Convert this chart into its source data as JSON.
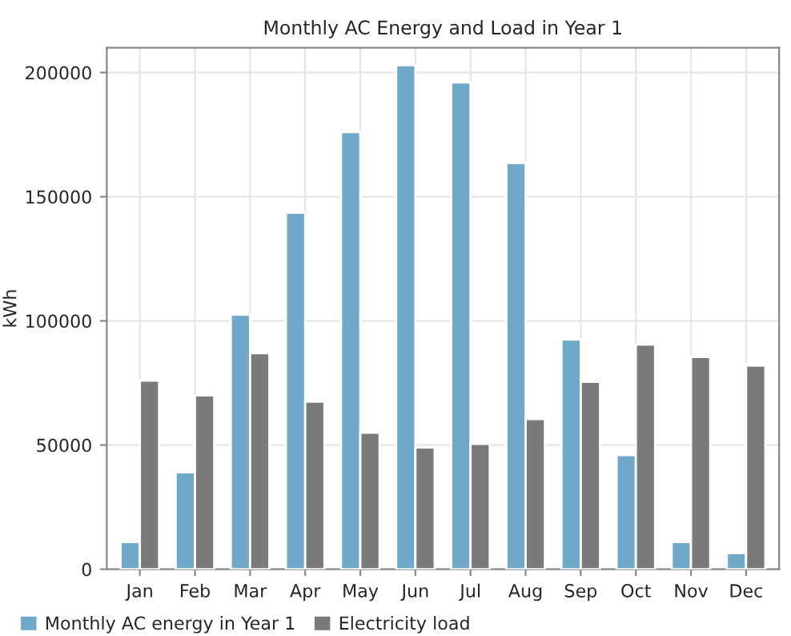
{
  "chart_data": {
    "type": "bar",
    "title": "Monthly AC Energy and Load in Year 1",
    "ylabel": "kWh",
    "categories": [
      "Jan",
      "Feb",
      "Mar",
      "Apr",
      "May",
      "Jun",
      "Jul",
      "Aug",
      "Sep",
      "Oct",
      "Nov",
      "Dec"
    ],
    "series": [
      {
        "name": "Monthly AC energy in Year 1",
        "color": "#6fa8c8",
        "values": [
          11000,
          39000,
          102500,
          143500,
          176000,
          203000,
          196000,
          163500,
          92500,
          46000,
          11000,
          6500
        ]
      },
      {
        "name": "Electricity load",
        "color": "#7a7a7a",
        "values": [
          76000,
          70000,
          87000,
          67500,
          55000,
          49000,
          50500,
          60500,
          75500,
          90500,
          85500,
          82000
        ]
      }
    ],
    "ylim": [
      0,
      210000
    ],
    "yticks": [
      0,
      50000,
      100000,
      150000,
      200000
    ],
    "grid": true,
    "legend": "bottom"
  }
}
